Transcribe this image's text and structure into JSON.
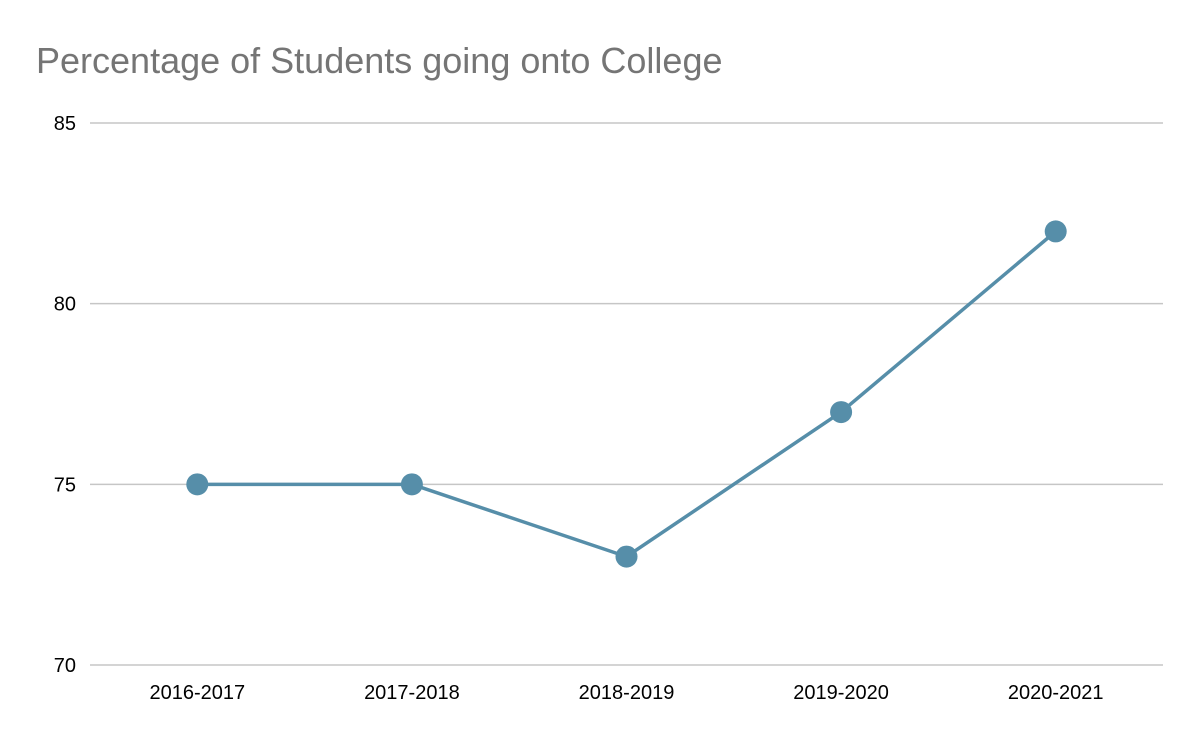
{
  "chart_data": {
    "type": "line",
    "title": "Percentage of Students going onto College",
    "xlabel": "",
    "ylabel": "",
    "categories": [
      "2016-2017",
      "2017-2018",
      "2018-2019",
      "2019-2020",
      "2020-2021"
    ],
    "series": [
      {
        "values": [
          75,
          75,
          73,
          77,
          82
        ],
        "color": "#568ea9"
      }
    ],
    "ylim": [
      70,
      85
    ],
    "yticks": [
      70,
      75,
      80,
      85
    ],
    "grid": true,
    "gridline_color": "#c6c6c6",
    "legend": "none",
    "marker": "circle"
  }
}
